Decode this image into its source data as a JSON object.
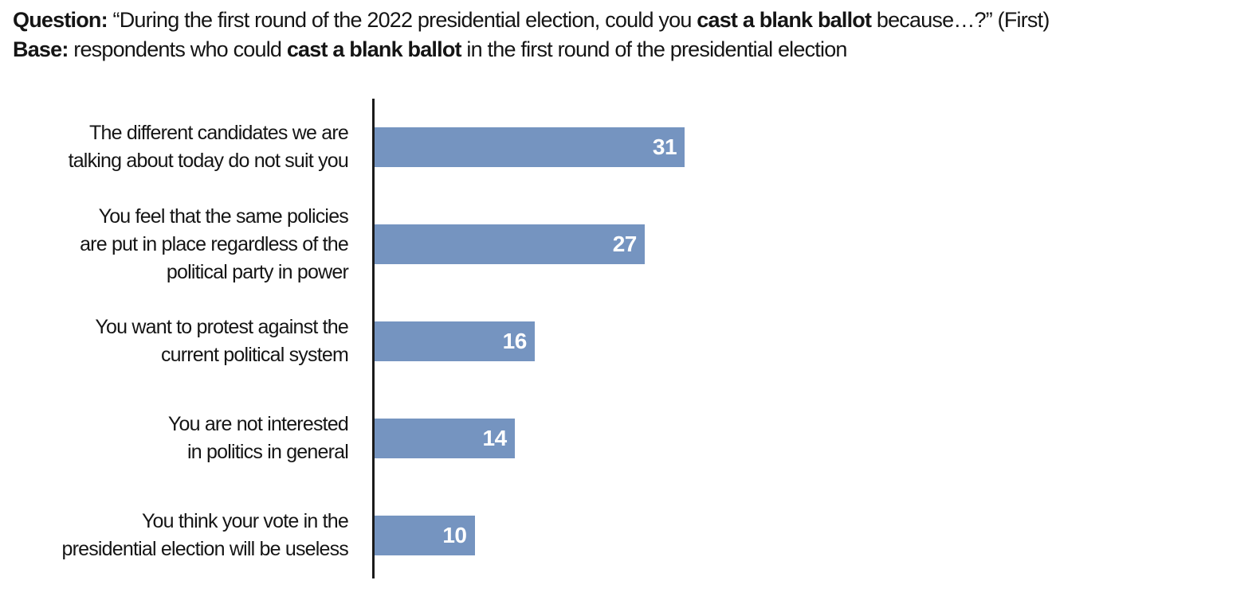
{
  "header": {
    "lines": [
      {
        "name": "question-line",
        "segments": [
          {
            "text": "Question:",
            "bold": true
          },
          {
            "text": " “During the first round of the 2022 presidential election, could you ",
            "bold": false
          },
          {
            "text": "cast a blank ballot",
            "bold": true
          },
          {
            "text": " because…?” (First)",
            "bold": false
          }
        ]
      },
      {
        "name": "base-line",
        "segments": [
          {
            "text": "Base:",
            "bold": true
          },
          {
            "text": " respondents who could ",
            "bold": false
          },
          {
            "text": "cast a blank ballot",
            "bold": true
          },
          {
            "text": " in the first round of the presidential election",
            "bold": false
          }
        ]
      }
    ]
  },
  "chart_data": {
    "type": "bar",
    "orientation": "horizontal",
    "categories": [
      "The different candidates we are talking about today do not suit you",
      "You feel that the same policies are put in place regardless of the political party in power",
      "You want to protest against the current political system",
      "You are not interested in politics in general",
      "You think your vote in the presidential election will be useless"
    ],
    "label_lines": [
      [
        "The different candidates we are",
        "talking about today do not suit you"
      ],
      [
        "You feel that the same policies",
        "are put in place regardless of the",
        "political party in power"
      ],
      [
        "You want to protest against the",
        "current political system"
      ],
      [
        "You are not interested",
        "in politics in general"
      ],
      [
        "You think your vote in the",
        "presidential election will be useless"
      ]
    ],
    "values": [
      31,
      27,
      16,
      14,
      10
    ],
    "value_labels": [
      "31",
      "27",
      "16",
      "14",
      "10"
    ],
    "xlim": [
      0,
      35
    ],
    "grid": false,
    "legend": false,
    "value_labels_position": "inside-end",
    "bar_color": "#7594C0",
    "value_label_color": "#FFFFFF",
    "axis_color": "#1A1A1A",
    "text_color": "#151515"
  }
}
